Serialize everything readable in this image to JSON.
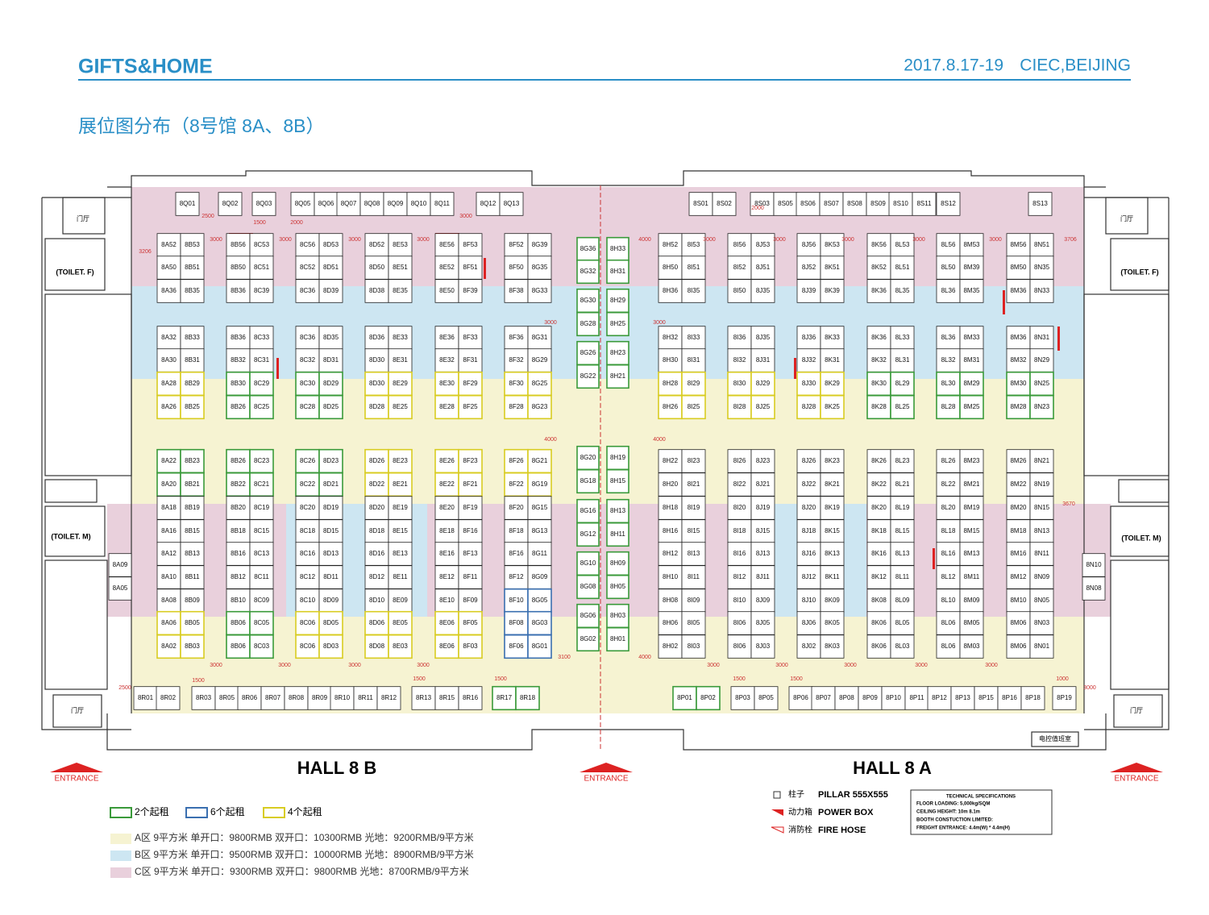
{
  "header": {
    "brand": "GIFTS&HOME",
    "event": "2017.8.17-19",
    "venue": "CIEC,BEIJING"
  },
  "title": "展位图分布（8号馆 8A、8B）",
  "halls": [
    "HALL 8 B",
    "HALL 8 A"
  ],
  "entrances": [
    "ENTRANCE",
    "ENTRANCE",
    "ENTRANCE"
  ],
  "rooms": {
    "lobbies": [
      "门厅",
      "门厅",
      "门厅",
      "门厅"
    ],
    "toilets": [
      "(TOILET. F)",
      "(TOILET. F)",
      "(TOILET. M)",
      "(TOILET. M)"
    ],
    "control_room": "电控值班室"
  },
  "booth_pairs": [
    [
      [
        "8A52",
        "8B53"
      ],
      [
        "8A50",
        "8B51"
      ],
      [
        "8A36",
        "8B35"
      ],
      [
        "8A32",
        "8B33"
      ],
      [
        "8A30",
        "8B31"
      ],
      [
        "8A28",
        "8B29"
      ],
      [
        "8A26",
        "8B25"
      ],
      [
        "8A22",
        "8B23"
      ],
      [
        "8A20",
        "8B21"
      ],
      [
        "8A18",
        "8B19"
      ],
      [
        "8A16",
        "8B15"
      ],
      [
        "8A12",
        "8B13"
      ],
      [
        "8A10",
        "8B11"
      ],
      [
        "8A08",
        "8B09"
      ],
      [
        "8A06",
        "8B05"
      ],
      [
        "8A02",
        "8B03"
      ]
    ],
    [
      [
        "8B56",
        "8C53"
      ],
      [
        "8B50",
        "8C51"
      ],
      [
        "8B36",
        "8C39"
      ],
      [
        "8B36",
        "8C33"
      ],
      [
        "8B32",
        "8C31"
      ],
      [
        "8B30",
        "8C29"
      ],
      [
        "8B26",
        "8C25"
      ],
      [
        "8B26",
        "8C23"
      ],
      [
        "8B22",
        "8C21"
      ],
      [
        "8B20",
        "8C19"
      ],
      [
        "8B18",
        "8C15"
      ],
      [
        "8B16",
        "8C13"
      ],
      [
        "8B12",
        "8C11"
      ],
      [
        "8B10",
        "8C09"
      ],
      [
        "8B06",
        "8C05"
      ],
      [
        "8B06",
        "8C03"
      ]
    ],
    [
      [
        "8C56",
        "8D53"
      ],
      [
        "8C52",
        "8D51"
      ],
      [
        "8C36",
        "8D39"
      ],
      [
        "8C36",
        "8D35"
      ],
      [
        "8C32",
        "8D31"
      ],
      [
        "8C30",
        "8D29"
      ],
      [
        "8C28",
        "8D25"
      ],
      [
        "8C26",
        "8D23"
      ],
      [
        "8C22",
        "8D21"
      ],
      [
        "8C20",
        "8D19"
      ],
      [
        "8C18",
        "8D15"
      ],
      [
        "8C16",
        "8D13"
      ],
      [
        "8C12",
        "8D11"
      ],
      [
        "8C10",
        "8D09"
      ],
      [
        "8C06",
        "8D05"
      ],
      [
        "8C06",
        "8D03"
      ]
    ],
    [
      [
        "8D52",
        "8E53"
      ],
      [
        "8D50",
        "8E51"
      ],
      [
        "8D38",
        "8E35"
      ],
      [
        "8D36",
        "8E33"
      ],
      [
        "8D30",
        "8E31"
      ],
      [
        "8D30",
        "8E29"
      ],
      [
        "8D28",
        "8E25"
      ],
      [
        "8D26",
        "8E23"
      ],
      [
        "8D22",
        "8E21"
      ],
      [
        "8D20",
        "8E19"
      ],
      [
        "8D18",
        "8E15"
      ],
      [
        "8D16",
        "8E13"
      ],
      [
        "8D12",
        "8E11"
      ],
      [
        "8D10",
        "8E09"
      ],
      [
        "8D06",
        "8E05"
      ],
      [
        "8D08",
        "8E03"
      ]
    ],
    [
      [
        "8E56",
        "8F53"
      ],
      [
        "8E52",
        "8F51"
      ],
      [
        "8E50",
        "8F39"
      ],
      [
        "8E36",
        "8F33"
      ],
      [
        "8E32",
        "8F31"
      ],
      [
        "8E30",
        "8F29"
      ],
      [
        "8E28",
        "8F25"
      ],
      [
        "8E26",
        "8F23"
      ],
      [
        "8E22",
        "8F21"
      ],
      [
        "8E20",
        "8F19"
      ],
      [
        "8E18",
        "8F16"
      ],
      [
        "8E16",
        "8F13"
      ],
      [
        "8E12",
        "8F11"
      ],
      [
        "8E10",
        "8F09"
      ],
      [
        "8E06",
        "8F05"
      ],
      [
        "8E06",
        "8F03"
      ]
    ],
    [
      [
        "8F52",
        "8G39"
      ],
      [
        "8F50",
        "8G35"
      ],
      [
        "8F38",
        "8G33"
      ],
      [
        "8F36",
        "8G31"
      ],
      [
        "8F32",
        "8G29"
      ],
      [
        "8F30",
        "8G25"
      ],
      [
        "8F28",
        "8G23"
      ],
      [
        "8F26",
        "8G21"
      ],
      [
        "8F22",
        "8G19"
      ],
      [
        "8F20",
        "8G15"
      ],
      [
        "8F18",
        "8G13"
      ],
      [
        "8F16",
        "8G11"
      ],
      [
        "8F12",
        "8G09"
      ],
      [
        "8F10",
        "8G05"
      ],
      [
        "8F08",
        "8G03"
      ],
      [
        "8F06",
        "8G01"
      ]
    ],
    [
      [
        "8H52",
        "8I53"
      ],
      [
        "8H50",
        "8I51"
      ],
      [
        "8H36",
        "8I35"
      ],
      [
        "8H32",
        "8I33"
      ],
      [
        "8H30",
        "8I31"
      ],
      [
        "8H28",
        "8I29"
      ],
      [
        "8H26",
        "8I25"
      ],
      [
        "8H22",
        "8I23"
      ],
      [
        "8H20",
        "8I21"
      ],
      [
        "8H18",
        "8I19"
      ],
      [
        "8H16",
        "8I15"
      ],
      [
        "8H12",
        "8I13"
      ],
      [
        "8H10",
        "8I11"
      ],
      [
        "8H08",
        "8I09"
      ],
      [
        "8H06",
        "8I05"
      ],
      [
        "8H02",
        "8I03"
      ]
    ],
    [
      [
        "8I56",
        "8J53"
      ],
      [
        "8I52",
        "8J51"
      ],
      [
        "8I50",
        "8J35"
      ],
      [
        "8I36",
        "8J35"
      ],
      [
        "8I32",
        "8J31"
      ],
      [
        "8I30",
        "8J29"
      ],
      [
        "8I28",
        "8J25"
      ],
      [
        "8I26",
        "8J23"
      ],
      [
        "8I22",
        "8J21"
      ],
      [
        "8I20",
        "8J19"
      ],
      [
        "8I18",
        "8J15"
      ],
      [
        "8I16",
        "8J13"
      ],
      [
        "8I12",
        "8J11"
      ],
      [
        "8I10",
        "8J09"
      ],
      [
        "8I06",
        "8J05"
      ],
      [
        "8I06",
        "8J03"
      ]
    ],
    [
      [
        "8J56",
        "8K53"
      ],
      [
        "8J52",
        "8K51"
      ],
      [
        "8J39",
        "8K39"
      ],
      [
        "8J36",
        "8K33"
      ],
      [
        "8J32",
        "8K31"
      ],
      [
        "8J30",
        "8K29"
      ],
      [
        "8J28",
        "8K25"
      ],
      [
        "8J26",
        "8K23"
      ],
      [
        "8J22",
        "8K21"
      ],
      [
        "8J20",
        "8K19"
      ],
      [
        "8J18",
        "8K15"
      ],
      [
        "8J16",
        "8K13"
      ],
      [
        "8J12",
        "8K11"
      ],
      [
        "8J10",
        "8K09"
      ],
      [
        "8J06",
        "8K05"
      ],
      [
        "8J02",
        "8K03"
      ]
    ],
    [
      [
        "8K56",
        "8L53"
      ],
      [
        "8K52",
        "8L51"
      ],
      [
        "8K36",
        "8L35"
      ],
      [
        "8K36",
        "8L33"
      ],
      [
        "8K32",
        "8L31"
      ],
      [
        "8K30",
        "8L29"
      ],
      [
        "8K28",
        "8L25"
      ],
      [
        "8K26",
        "8L23"
      ],
      [
        "8K22",
        "8L21"
      ],
      [
        "8K20",
        "8L19"
      ],
      [
        "8K18",
        "8L15"
      ],
      [
        "8K16",
        "8L13"
      ],
      [
        "8K12",
        "8L11"
      ],
      [
        "8K08",
        "8L09"
      ],
      [
        "8K06",
        "8L05"
      ],
      [
        "8K06",
        "8L03"
      ]
    ],
    [
      [
        "8L56",
        "8M53"
      ],
      [
        "8L50",
        "8M39"
      ],
      [
        "8L36",
        "8M35"
      ],
      [
        "8L36",
        "8M33"
      ],
      [
        "8L32",
        "8M31"
      ],
      [
        "8L30",
        "8M29"
      ],
      [
        "8L28",
        "8M25"
      ],
      [
        "8L26",
        "8M23"
      ],
      [
        "8L22",
        "8M21"
      ],
      [
        "8L20",
        "8M19"
      ],
      [
        "8L18",
        "8M15"
      ],
      [
        "8L16",
        "8M13"
      ],
      [
        "8L12",
        "8M11"
      ],
      [
        "8L10",
        "8M09"
      ],
      [
        "8L06",
        "8M05"
      ],
      [
        "8L06",
        "8M03"
      ]
    ],
    [
      [
        "8M56",
        "8N51"
      ],
      [
        "8M50",
        "8N35"
      ],
      [
        "8M36",
        "8N33"
      ],
      [
        "8M36",
        "8N31"
      ],
      [
        "8M32",
        "8N29"
      ],
      [
        "8M30",
        "8N25"
      ],
      [
        "8M28",
        "8N23"
      ],
      [
        "8M26",
        "8N21"
      ],
      [
        "8M22",
        "8N19"
      ],
      [
        "8M20",
        "8N15"
      ],
      [
        "8M18",
        "8N13"
      ],
      [
        "8M16",
        "8N11"
      ],
      [
        "8M12",
        "8N09"
      ],
      [
        "8M10",
        "8N05"
      ],
      [
        "8M06",
        "8N03"
      ],
      [
        "8M06",
        "8N01"
      ]
    ]
  ],
  "center_booths": [
    [
      "8G36",
      "8H33"
    ],
    [
      "8G32",
      "8H31"
    ],
    [
      "8G30",
      "8H29"
    ],
    [
      "8G28",
      "8H25"
    ],
    [
      "8G26",
      "8H23"
    ],
    [
      "8G22",
      "8H21"
    ],
    [
      "8G20",
      "8H19"
    ],
    [
      "8G18",
      "8H15"
    ],
    [
      "8G16",
      "8H13"
    ],
    [
      "8G12",
      "8H11"
    ],
    [
      "8G10",
      "8H09"
    ],
    [
      "8G08",
      "8H05"
    ],
    [
      "8G06",
      "8H03"
    ],
    [
      "8G02",
      "8H01"
    ]
  ],
  "side_booths": {
    "left": [
      "8A09",
      "8A05"
    ],
    "right": [
      "8N10",
      "8N08"
    ]
  },
  "top_row": {
    "q": [
      "8Q01",
      "8Q02",
      "8Q03",
      "8Q05",
      "8Q06",
      "8Q07",
      "8Q08",
      "8Q09",
      "8Q10",
      "8Q11",
      "8Q12",
      "8Q13"
    ],
    "s": [
      "8S01",
      "8S02",
      "8S03",
      "8S05",
      "8S06",
      "8S07",
      "8S08",
      "8S09",
      "8S10",
      "8S11",
      "8S12",
      "8S13"
    ]
  },
  "bottom_row": {
    "r": [
      "8R01",
      "8R02",
      "8R03",
      "8R05",
      "8R06",
      "8R07",
      "8R08",
      "8R09",
      "8R10",
      "8R11",
      "8R12",
      "8R13",
      "8R15",
      "8R16",
      "8R17",
      "8R18"
    ],
    "p": [
      "8P01",
      "8P02",
      "8P03",
      "8P05",
      "8P06",
      "8P07",
      "8P08",
      "8P09",
      "8P10",
      "8P11",
      "8P12",
      "8P13",
      "8P15",
      "8P16",
      "8P18",
      "8P19"
    ]
  },
  "legend": {
    "outlines": [
      "2个起租",
      "6个起租",
      "4个起租"
    ],
    "zones": [
      "A区 9平方米 单开口：9800RMB 双开口：10300RMB 光地：9200RMB/9平方米",
      "B区 9平方米 单开口：9500RMB 双开口：10000RMB 光地：8900RMB/9平方米",
      "C区 9平方米 单开口：9300RMB 双开口：9800RMB 光地：8700RMB/9平方米"
    ]
  },
  "symbols": [
    {
      "cn": "柱子",
      "en": "PILLAR 555X555"
    },
    {
      "cn": "动力箱",
      "en": "POWER BOX"
    },
    {
      "cn": "消防栓",
      "en": "FIRE HOSE"
    }
  ],
  "specs": [
    "TECHNICAL SPECIFICATIONS",
    "FLOOR LOADING: 5,000kg/SQM",
    "CEILING HEIGHT: 10m 8.1m",
    "BOOTH CONSTUCTION LIMITED:",
    "FREIGHT ENTRANCE: 4.4m(W) * 4.4m(H)"
  ],
  "dimensions": [
    "3206",
    "3000",
    "3000",
    "3000",
    "3000",
    "4000",
    "3000",
    "3000",
    "3000",
    "3000",
    "3000",
    "3706",
    "2500",
    "1500",
    "2000",
    "3000",
    "2000",
    "3000",
    "4000",
    "3000",
    "4000",
    "3670",
    "2500",
    "3000",
    "3000",
    "3000",
    "3000",
    "3100",
    "4000",
    "3000",
    "3000",
    "3000",
    "3000",
    "3000",
    "1500",
    "1500",
    "1500",
    "1500",
    "1500",
    "1000",
    "3000"
  ]
}
